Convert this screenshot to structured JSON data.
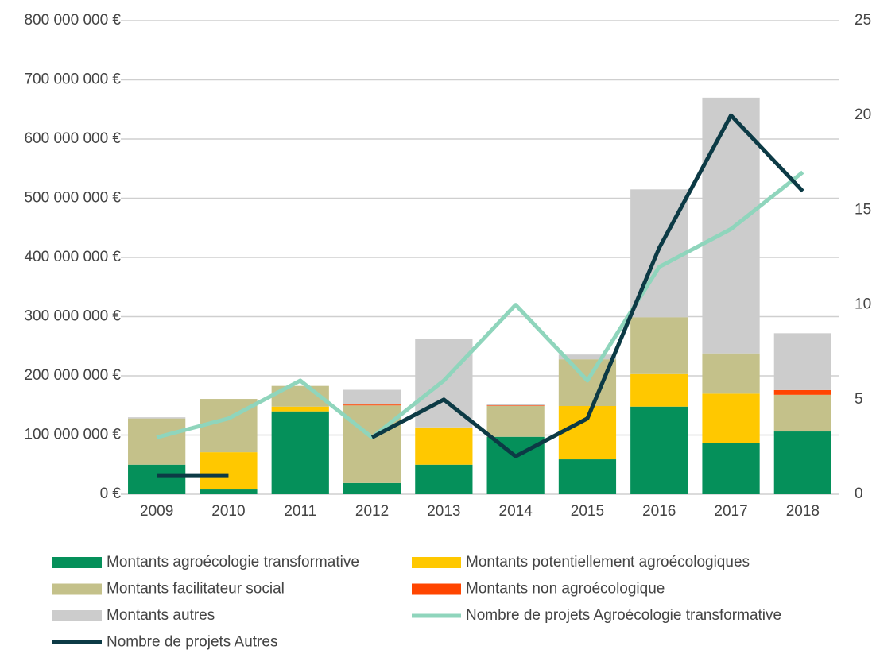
{
  "chart_data": {
    "type": "bar",
    "stacked": true,
    "categories": [
      "2009",
      "2010",
      "2011",
      "2012",
      "2013",
      "2014",
      "2015",
      "2016",
      "2017",
      "2018"
    ],
    "series": [
      {
        "name": "Montants agroécologie transformative",
        "color": "#05905a",
        "values": [
          50000000,
          8000000,
          140000000,
          19000000,
          50000000,
          97000000,
          59000000,
          148000000,
          87000000,
          106000000
        ]
      },
      {
        "name": "Montants potentiellement agroécologiques",
        "color": "#ffc800",
        "values": [
          0,
          63000000,
          8000000,
          0,
          63000000,
          0,
          90000000,
          55000000,
          83000000,
          0
        ]
      },
      {
        "name": "Montants facilitateur social",
        "color": "#c4c18a",
        "values": [
          78000000,
          90000000,
          35000000,
          131000000,
          0,
          52000000,
          79000000,
          96000000,
          68000000,
          62000000
        ]
      },
      {
        "name": "Montants non agroécologique",
        "color": "#ff4500",
        "values": [
          0,
          0,
          0,
          1500000,
          0,
          1000000,
          0,
          0,
          0,
          8000000
        ]
      },
      {
        "name": "Montants autres",
        "color": "#cccccc",
        "values": [
          2000000,
          0,
          0,
          25000000,
          149000000,
          3000000,
          8000000,
          216000000,
          432000000,
          96000000
        ]
      },
      {
        "name": "Nombre de projets Agroécologie transformative",
        "type": "line",
        "axis": "y2",
        "color": "#8fd5bc",
        "values": [
          3,
          4,
          6,
          3,
          6,
          10,
          6,
          12,
          14,
          17
        ]
      },
      {
        "name": "Nombre de projets Autres",
        "type": "line",
        "axis": "y2",
        "color": "#0c3a45",
        "values": [
          1,
          1,
          null,
          3,
          5,
          2,
          4,
          13,
          20,
          16
        ]
      }
    ],
    "ylim": [
      0,
      800000000
    ],
    "yticks": [
      {
        "value": 0,
        "label": "0 €"
      },
      {
        "value": 100000000,
        "label": "100 000 000 €"
      },
      {
        "value": 200000000,
        "label": "200 000 000 €"
      },
      {
        "value": 300000000,
        "label": "300 000 000 €"
      },
      {
        "value": 400000000,
        "label": "400 000 000 €"
      },
      {
        "value": 500000000,
        "label": "500 000 000 €"
      },
      {
        "value": 600000000,
        "label": "600 000 000 €"
      },
      {
        "value": 700000000,
        "label": "700 000 000 €"
      },
      {
        "value": 800000000,
        "label": "800 000 000 €"
      }
    ],
    "y2lim": [
      0,
      25
    ],
    "y2ticks": [
      0,
      5,
      10,
      15,
      20,
      25
    ],
    "grid": true,
    "legend": "bottom"
  }
}
